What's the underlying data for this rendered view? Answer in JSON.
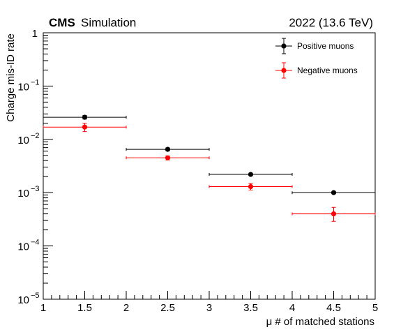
{
  "chart_data": {
    "type": "scatter",
    "experiment_label": "CMS",
    "experiment_sublabel": "Simulation",
    "energy_label": "2022 (13.6 TeV)",
    "xlabel": "μ # of matched stations",
    "ylabel": "Charge mis-ID rate",
    "x_range": [
      1,
      5
    ],
    "y_range": [
      1e-05,
      1
    ],
    "y_scale": "log",
    "x_ticks": [
      1,
      1.5,
      2,
      2.5,
      3,
      3.5,
      4,
      4.5,
      5
    ],
    "x_tick_labels": [
      "1",
      "1.5",
      "2",
      "2.5",
      "3",
      "3.5",
      "4",
      "4.5",
      "5"
    ],
    "y_ticks": [
      1e-05,
      0.0001,
      0.001,
      0.01,
      0.1,
      1
    ],
    "y_tick_labels": [
      {
        "base": "10",
        "exp": "−5"
      },
      {
        "base": "10",
        "exp": "−4"
      },
      {
        "base": "10",
        "exp": "−3"
      },
      {
        "base": "10",
        "exp": "−2"
      },
      {
        "base": "10",
        "exp": "−1"
      },
      {
        "base": "1",
        "exp": ""
      }
    ],
    "legend_position": "top-right",
    "grid": false,
    "series": [
      {
        "name": "Positive muons",
        "color": "#000000",
        "points": [
          {
            "x": 1.5,
            "xlow": 1,
            "xhigh": 2,
            "y": 0.026,
            "ylow": 0.024,
            "yhigh": 0.028
          },
          {
            "x": 2.5,
            "xlow": 2,
            "xhigh": 3,
            "y": 0.0065,
            "ylow": 0.0061,
            "yhigh": 0.0069
          },
          {
            "x": 3.5,
            "xlow": 3,
            "xhigh": 4,
            "y": 0.0022,
            "ylow": 0.0021,
            "yhigh": 0.0023
          },
          {
            "x": 4.5,
            "xlow": 4,
            "xhigh": 5,
            "y": 0.001,
            "ylow": 0.00097,
            "yhigh": 0.00103
          }
        ]
      },
      {
        "name": "Negative muons",
        "color": "#ff0000",
        "points": [
          {
            "x": 1.5,
            "xlow": 1,
            "xhigh": 2,
            "y": 0.017,
            "ylow": 0.014,
            "yhigh": 0.02
          },
          {
            "x": 2.5,
            "xlow": 2,
            "xhigh": 3,
            "y": 0.0045,
            "ylow": 0.0041,
            "yhigh": 0.0049
          },
          {
            "x": 3.5,
            "xlow": 3,
            "xhigh": 4,
            "y": 0.0013,
            "ylow": 0.00112,
            "yhigh": 0.00148
          },
          {
            "x": 4.5,
            "xlow": 4,
            "xhigh": 5,
            "y": 0.0004,
            "ylow": 0.00029,
            "yhigh": 0.00053
          }
        ]
      }
    ]
  }
}
